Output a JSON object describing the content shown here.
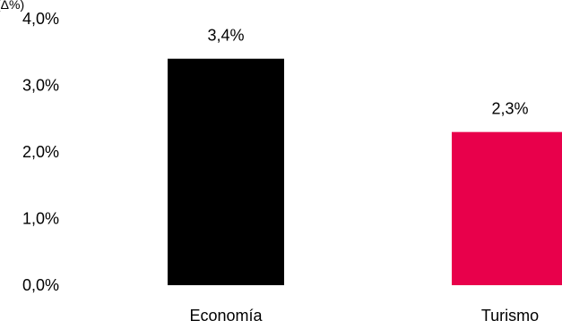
{
  "chart_data": {
    "type": "bar",
    "title": "",
    "unit_label": "(Δ%)",
    "xlabel": "",
    "ylabel": "",
    "categories": [
      "Economía",
      "Turismo"
    ],
    "values": [
      3.4,
      2.3
    ],
    "value_labels": [
      "3,4%",
      "2,3%"
    ],
    "ylim": [
      0,
      4
    ],
    "yticks": [
      0,
      1,
      2,
      3,
      4
    ],
    "ytick_labels": [
      "0,0%",
      "1,0%",
      "2,0%",
      "3,0%",
      "4,0%"
    ],
    "colors": [
      "#000000",
      "#e8004b"
    ],
    "grid": false,
    "legend": "none"
  }
}
